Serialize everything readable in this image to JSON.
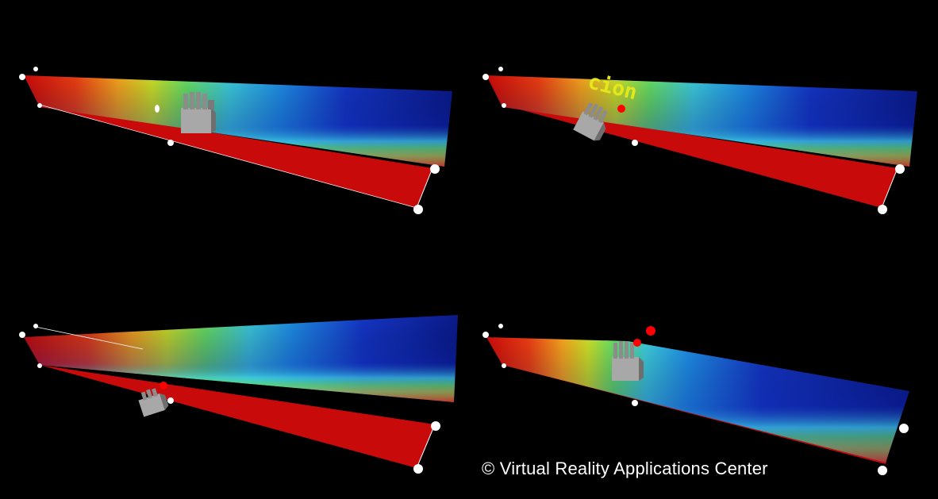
{
  "image": {
    "description_layout": "2x2 grid of 3D flow visualization frames with virtual hand cursor",
    "background_color": "#000000",
    "colormap": [
      "#0a1a8c",
      "#1436c8",
      "#1e8ce6",
      "#3cc8dc",
      "#64dc64",
      "#c8dc28",
      "#f0a01e",
      "#e63c14",
      "#c80a0a"
    ],
    "slab_top_color": "#c80a0a",
    "hand_color": "#a8a8a8",
    "marker_color": "#ff0000"
  },
  "panels": [
    {
      "id": "top-left",
      "hand": "open-hand-icon",
      "marker": false,
      "label": ""
    },
    {
      "id": "top-right",
      "hand": "tilted-hand-icon",
      "marker": true,
      "label": "cion"
    },
    {
      "id": "bottom-left",
      "hand": "tilted-hand-icon",
      "marker": true,
      "label": ""
    },
    {
      "id": "bottom-right",
      "hand": "open-hand-icon",
      "marker": true,
      "label": ""
    }
  ],
  "overlay": {
    "credit": "© Virtual Reality Applications Center",
    "floating_word": "cion"
  }
}
